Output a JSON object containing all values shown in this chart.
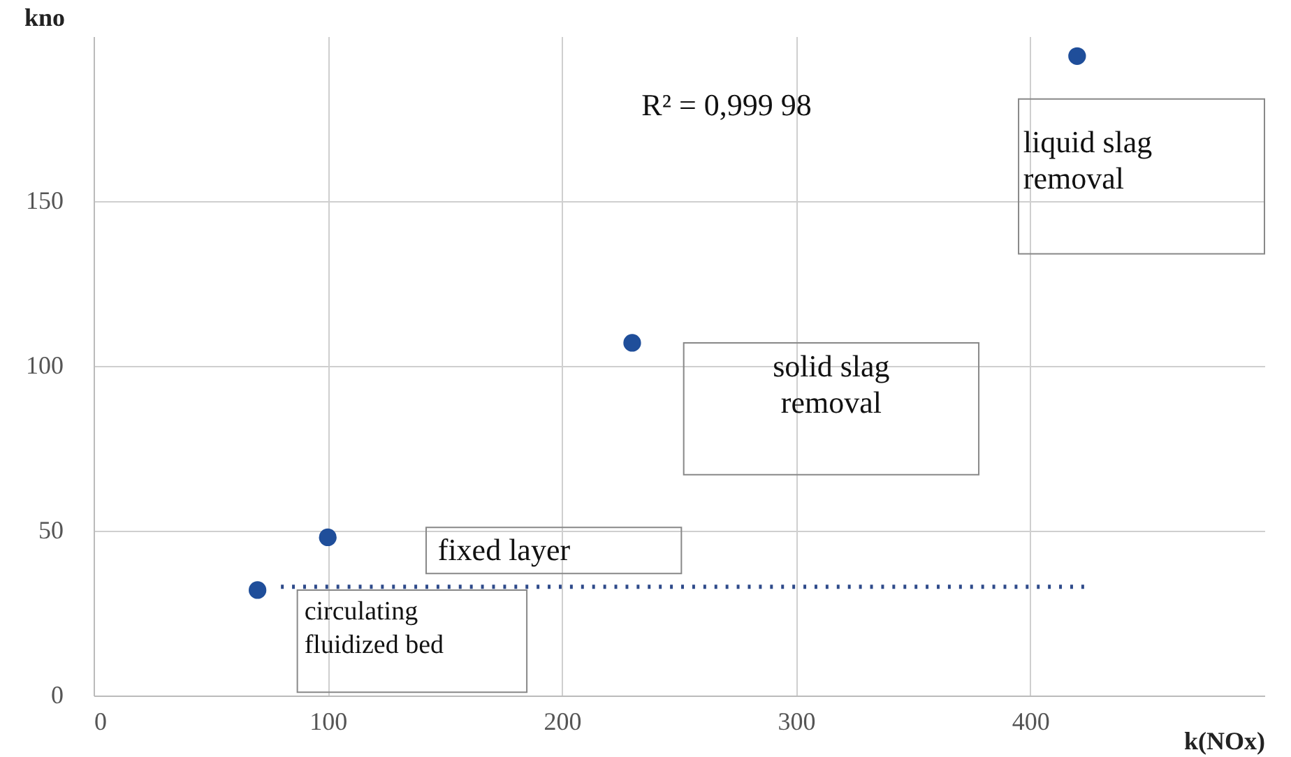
{
  "chart_data": {
    "type": "scatter",
    "xlabel": "k(NOx)",
    "ylabel": "kno",
    "xlim": [
      0,
      500
    ],
    "ylim": [
      0,
      200
    ],
    "xticks": [
      0,
      100,
      200,
      300,
      400
    ],
    "yticks": [
      0,
      50,
      100,
      150
    ],
    "grid": true,
    "marker": "circle",
    "series": [
      {
        "color": "#1f4e9a",
        "x": [
          70,
          100,
          230,
          420
        ],
        "values": [
          32,
          48,
          107,
          194
        ]
      },
      {
        "type": "line",
        "color": "#2e4a8a",
        "line_style": "dotted",
        "marker": "none",
        "x": [
          80,
          423
        ],
        "values": [
          33,
          33
        ]
      }
    ],
    "annotations": [
      "R² = 0,999  98",
      "liquid slag\nremoval",
      "solid slag\nremoval",
      "fixed layer",
      "circulating\nfluidized bed"
    ]
  }
}
